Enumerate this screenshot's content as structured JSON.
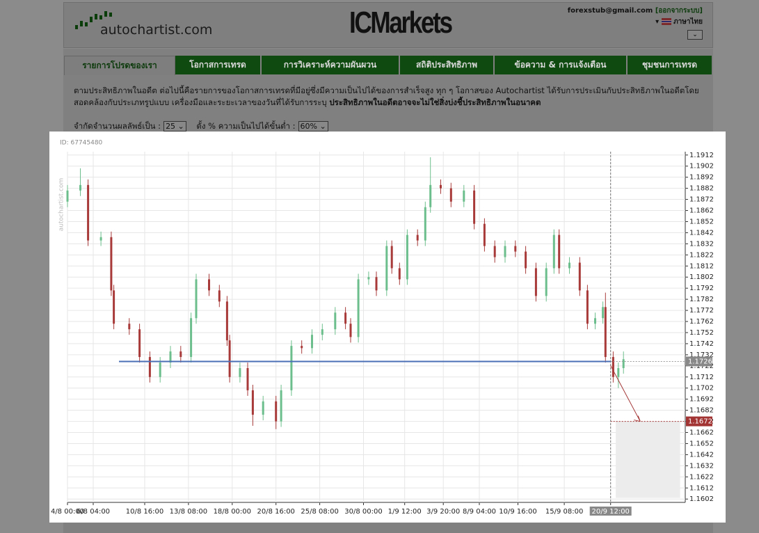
{
  "header": {
    "email": "forexstub@gmail.com",
    "logout": "[ออกจากระบบ]",
    "language": "ภาษาไทย"
  },
  "logos": {
    "autochartist": "autochartist.com",
    "broker": "ICMarkets"
  },
  "tabs": [
    "รายการโปรดของเรา",
    "โอกาสการเทรด",
    "การวิเคราะห์ความผันผวน",
    "สถิติประสิทธิภาพ",
    "ข้อความ & การแจ้งเตือน",
    "ชุมชนการเทรด"
  ],
  "intro": {
    "text": "ตามประสิทธิภาพในอดีต ต่อไปนี้คือรายการของโอกาสการเทรดที่มีอยู่ซึ่งมีความเป็นไปได้ของการสำเร็จสูง ทุก ๆ โอกาสของ Autochartist ได้รับการประเมินกับประสิทธิภาพในอดีตโดยสอดคล้องกับประเภทรูปแบบ เครื่องมือและระยะเวลาของวันที่ได้รับการระบุ",
    "emphasis": "ประสิทธิภาพในอดีตอาจจะไม่ใช่สิ่งบ่งชี้ประสิทธิภาพในอนาคต"
  },
  "filters": {
    "limit_label": "จำกัดจำนวนผลลัพธ์เป็น :",
    "limit_value": "25",
    "prob_label": "ตั้ง % ความเป็นไปได้ขั้นต่ำ :",
    "prob_value": "60%"
  },
  "chart_data": {
    "type": "candlestick",
    "id_label": "ID: 67745480",
    "watermark": "autochartist.com",
    "x": [
      0,
      5,
      8,
      13,
      17,
      18,
      24,
      28,
      32,
      36,
      40,
      44,
      48,
      50,
      55,
      59,
      62,
      63,
      67,
      70,
      72,
      76,
      81,
      83,
      87,
      91,
      95,
      99,
      104,
      108,
      110,
      113,
      117,
      120,
      124,
      126,
      129,
      132,
      136,
      139,
      141,
      145,
      149,
      154,
      158,
      162,
      166,
      170,
      174,
      178,
      182,
      186,
      189,
      191,
      195,
      199,
      202,
      205,
      208,
      209,
      212,
      214,
      216
    ],
    "open": [
      1.187,
      1.188,
      1.1885,
      1.1835,
      1.1838,
      1.179,
      1.176,
      1.1755,
      1.173,
      1.1712,
      1.1725,
      1.1735,
      1.173,
      1.1765,
      1.18,
      1.179,
      1.178,
      1.1745,
      1.1712,
      1.172,
      1.17,
      1.1678,
      1.169,
      1.1672,
      1.17,
      1.174,
      1.1738,
      1.175,
      1.1755,
      1.177,
      1.176,
      1.1748,
      1.18,
      1.1802,
      1.179,
      1.183,
      1.181,
      1.18,
      1.184,
      1.1835,
      1.1865,
      1.1885,
      1.1882,
      1.187,
      1.188,
      1.185,
      1.183,
      1.182,
      1.183,
      1.1825,
      1.181,
      1.1785,
      1.181,
      1.184,
      1.181,
      1.1815,
      1.179,
      1.176,
      1.1765,
      1.1775,
      1.173,
      1.1712,
      1.172
    ],
    "high": [
      1.1885,
      1.19,
      1.189,
      1.1843,
      1.1843,
      1.1795,
      1.1765,
      1.176,
      1.1735,
      1.173,
      1.174,
      1.174,
      1.177,
      1.1805,
      1.1805,
      1.1795,
      1.1785,
      1.175,
      1.1725,
      1.1725,
      1.1705,
      1.1695,
      1.1695,
      1.1705,
      1.1745,
      1.1745,
      1.1755,
      1.176,
      1.1775,
      1.1775,
      1.1765,
      1.1805,
      1.1807,
      1.1807,
      1.1835,
      1.1835,
      1.1815,
      1.1845,
      1.1845,
      1.187,
      1.191,
      1.189,
      1.1887,
      1.1885,
      1.1885,
      1.1855,
      1.1835,
      1.1835,
      1.1835,
      1.183,
      1.1815,
      1.1815,
      1.1845,
      1.1845,
      1.182,
      1.182,
      1.1795,
      1.177,
      1.178,
      1.1788,
      1.1735,
      1.1725,
      1.1735
    ],
    "low": [
      1.1865,
      1.1875,
      1.183,
      1.183,
      1.1785,
      1.1755,
      1.175,
      1.1725,
      1.1707,
      1.1707,
      1.172,
      1.1725,
      1.1725,
      1.176,
      1.1785,
      1.1775,
      1.174,
      1.1707,
      1.1707,
      1.1695,
      1.1668,
      1.1673,
      1.1665,
      1.1667,
      1.1695,
      1.1733,
      1.1733,
      1.1745,
      1.175,
      1.1755,
      1.1743,
      1.1743,
      1.1795,
      1.1785,
      1.1785,
      1.1805,
      1.1795,
      1.1795,
      1.183,
      1.183,
      1.186,
      1.1877,
      1.1865,
      1.1865,
      1.1845,
      1.1825,
      1.1815,
      1.1815,
      1.182,
      1.1805,
      1.178,
      1.178,
      1.1805,
      1.1805,
      1.1805,
      1.1785,
      1.1755,
      1.1755,
      1.176,
      1.1725,
      1.1707,
      1.1702,
      1.1715
    ],
    "close": [
      1.188,
      1.1885,
      1.1835,
      1.1838,
      1.179,
      1.176,
      1.1755,
      1.173,
      1.1712,
      1.1725,
      1.1735,
      1.173,
      1.1765,
      1.18,
      1.179,
      1.178,
      1.1745,
      1.1712,
      1.172,
      1.17,
      1.1678,
      1.169,
      1.1672,
      1.17,
      1.174,
      1.1738,
      1.175,
      1.1755,
      1.177,
      1.176,
      1.1748,
      1.18,
      1.1802,
      1.179,
      1.183,
      1.181,
      1.18,
      1.184,
      1.1835,
      1.1865,
      1.1885,
      1.1882,
      1.187,
      1.188,
      1.185,
      1.183,
      1.182,
      1.183,
      1.1825,
      1.181,
      1.1785,
      1.181,
      1.184,
      1.181,
      1.1815,
      1.179,
      1.176,
      1.1765,
      1.1775,
      1.173,
      1.1712,
      1.172,
      1.1728
    ],
    "up_color": "#6cbf8c",
    "down_color": "#a83a3a",
    "xlim": [
      0,
      240
    ],
    "ylim": [
      1.1599,
      1.1915
    ],
    "grid": true,
    "xticks": [
      {
        "value": 0,
        "label": "4/8 00:00"
      },
      {
        "value": 10,
        "label": "6/8 04:00"
      },
      {
        "value": 30,
        "label": "10/8 16:00"
      },
      {
        "value": 47,
        "label": "13/8 08:00"
      },
      {
        "value": 64,
        "label": "18/8 00:00"
      },
      {
        "value": 81,
        "label": "20/8 16:00"
      },
      {
        "value": 98,
        "label": "25/8 08:00"
      },
      {
        "value": 115,
        "label": "30/8 00:00"
      },
      {
        "value": 131,
        "label": "1/9 12:00"
      },
      {
        "value": 146,
        "label": "3/9 20:00"
      },
      {
        "value": 160,
        "label": "8/9 04:00"
      },
      {
        "value": 175,
        "label": "10/9 16:00"
      },
      {
        "value": 193,
        "label": "15/9 08:00"
      },
      {
        "value": 211,
        "label": "20/9 12:00"
      }
    ],
    "yticks": [
      1.1602,
      1.1612,
      1.1622,
      1.1632,
      1.1642,
      1.1652,
      1.1662,
      1.1672,
      1.1682,
      1.1692,
      1.1702,
      1.1712,
      1.1722,
      1.1732,
      1.1742,
      1.1752,
      1.1762,
      1.1772,
      1.1782,
      1.1792,
      1.1802,
      1.1812,
      1.1822,
      1.1832,
      1.1842,
      1.1852,
      1.1862,
      1.1872,
      1.1882,
      1.1892,
      1.1902,
      1.1912
    ],
    "pattern_line": {
      "value": 1.1726,
      "x": [
        20,
        211
      ],
      "color": "#4a6fb5"
    },
    "forecast_x": 211,
    "target": {
      "value": 1.1672,
      "x": [
        213,
        238
      ],
      "bottom": 1.1603,
      "color": "#a33434"
    }
  }
}
